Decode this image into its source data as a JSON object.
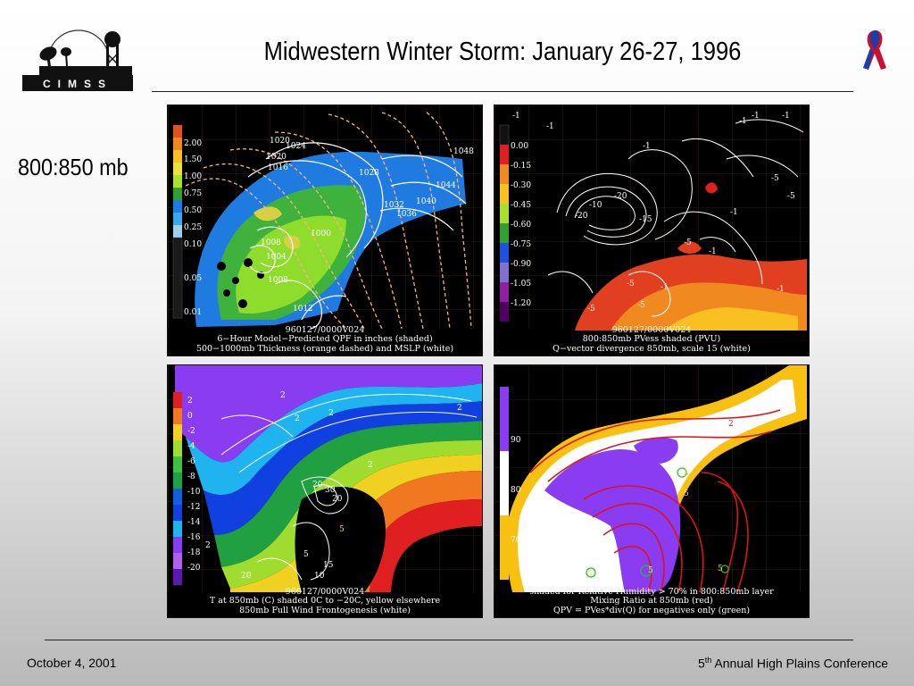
{
  "header": {
    "title": "Midwestern Winter Storm: January 26-27, 1996",
    "logo_text": "CIMSS",
    "ribbon_icon": "awareness-ribbon-icon"
  },
  "subtitle": "800:850 mb",
  "panels": [
    {
      "caption": [
        "960127/0000V024",
        "6−Hour Model−Predicted QPF in inches (shaded)",
        "500−1000mb Thickness (orange dashed) and MSLP (white)"
      ],
      "legend_ticks": [
        "2.00",
        "1.50",
        "1.00",
        "0.75",
        "0.50",
        "0.25",
        "0.10",
        "0.05",
        "0.01"
      ],
      "contour_labels": [
        "1020",
        "1024",
        "1020",
        "1016",
        "1028",
        "1048",
        "1044",
        "1040",
        "1032",
        "1036",
        "1008",
        "1004",
        "1008",
        "1012",
        "1000"
      ]
    },
    {
      "caption": [
        "960127/0000V024",
        "800:850mb PVess shaded (PVU)",
        "Q−vector divergence 850mb, scale 15 (white)"
      ],
      "legend_ticks": [
        "0.00",
        "-0.15",
        "-0.30",
        "-0.45",
        "-0.60",
        "-0.75",
        "-0.90",
        "-1.05",
        "-1.20"
      ],
      "contour_labels": [
        "-1",
        "-1",
        "-1",
        "-1",
        "-1",
        "-1",
        "-5",
        "-5",
        "-20",
        "-10",
        "-20",
        "-15",
        "-5",
        "-1",
        "-5",
        "-1",
        "-5",
        "-1",
        "-5",
        "-1"
      ]
    },
    {
      "caption": [
        "960127/0000V024",
        "T at 850mb (C) shaded 0C to −20C, yellow elsewhere",
        "850mb Full Wind Frontogenesis (white)"
      ],
      "legend_ticks": [
        "2",
        "0",
        "-2",
        "-4",
        "-6",
        "-8",
        "-10",
        "-12",
        "-14",
        "-16",
        "-18",
        "-20"
      ],
      "contour_labels": [
        "2",
        "2",
        "2",
        "2",
        "2",
        "20",
        "30",
        "20",
        "5",
        "5",
        "15",
        "10",
        "20",
        "2"
      ]
    },
    {
      "caption": [
        "shaded for Relative Humidity > 70% in 800:850mb layer",
        "Mixing Ratio at 850mb (red)",
        "QPV = PVes*div(Q) for negatives only (green)"
      ],
      "legend_ticks": [
        "90",
        "80",
        "70"
      ],
      "contour_labels": [
        "2",
        "5",
        "5",
        "5",
        "5",
        "5"
      ]
    }
  ],
  "footer": {
    "date": "October 4, 2001",
    "conference_num": "5",
    "conference_sup": "th",
    "conference_rest": " Annual High Plains Conference"
  },
  "colors": {
    "title_rule": "#222222",
    "panel_background": "#000000",
    "pressure_contours": "#ffffff",
    "thickness_contours": "#f5b48a",
    "mixing_ratio_contours": "#d81616",
    "qpv_contours": "#22c022"
  }
}
